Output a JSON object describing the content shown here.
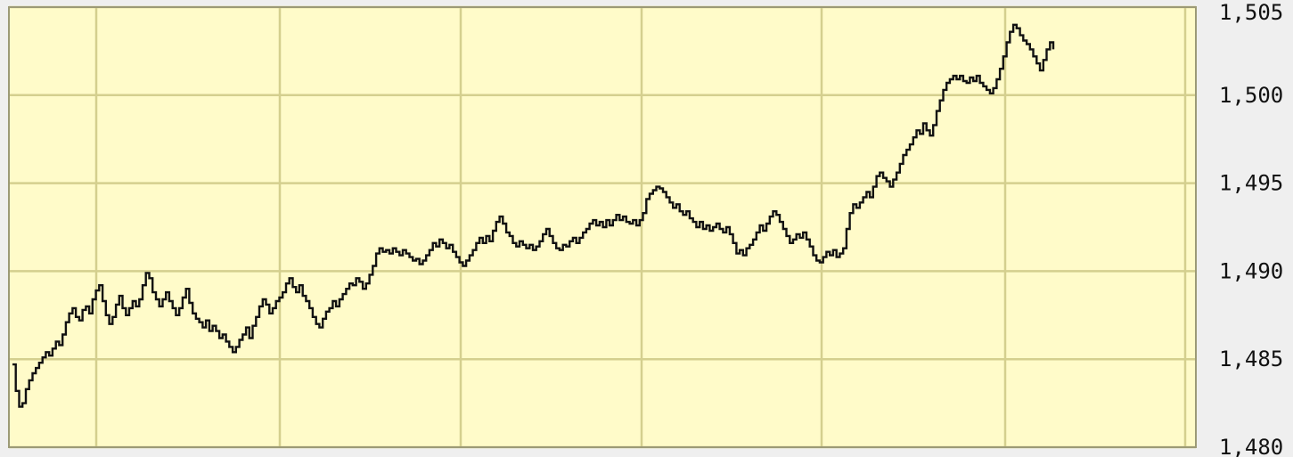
{
  "chart_data": {
    "type": "line",
    "title": "",
    "xlabel": "",
    "ylabel": "",
    "ylim": [
      1480,
      1505
    ],
    "y_ticks": [
      "1,505",
      "1,500",
      "1,495",
      "1,490",
      "1,485",
      "1,480"
    ],
    "y_tick_values": [
      1505,
      1500,
      1495,
      1490,
      1485,
      1480
    ],
    "x_gridline_count": 6,
    "y_axis_position": "right",
    "grid": true,
    "colors": {
      "plot_background": "#fffbc9",
      "gridline": "#d4cf8e",
      "line": "#111111",
      "frame": "#9c9a76"
    },
    "series": [
      {
        "values": [
          1484.7,
          1483.2,
          1482.3,
          1482.5,
          1483.3,
          1483.8,
          1484.2,
          1484.5,
          1484.8,
          1485.1,
          1485.4,
          1485.2,
          1485.6,
          1486.0,
          1485.8,
          1486.4,
          1487.1,
          1487.6,
          1487.9,
          1487.4,
          1487.2,
          1487.8,
          1488.0,
          1487.6,
          1488.4,
          1488.9,
          1489.2,
          1488.3,
          1487.5,
          1487.0,
          1487.4,
          1488.1,
          1488.6,
          1487.9,
          1487.5,
          1487.9,
          1488.3,
          1488.0,
          1488.4,
          1489.2,
          1489.9,
          1489.6,
          1488.8,
          1488.4,
          1488.0,
          1488.4,
          1488.8,
          1488.3,
          1487.9,
          1487.5,
          1487.9,
          1488.5,
          1489.0,
          1488.2,
          1487.6,
          1487.3,
          1487.1,
          1486.8,
          1487.2,
          1486.6,
          1486.9,
          1486.6,
          1486.2,
          1486.4,
          1486.0,
          1485.7,
          1485.4,
          1485.7,
          1486.1,
          1486.4,
          1486.8,
          1486.2,
          1486.9,
          1487.4,
          1488.0,
          1488.4,
          1488.1,
          1487.6,
          1487.9,
          1488.3,
          1488.5,
          1488.8,
          1489.3,
          1489.6,
          1489.1,
          1488.8,
          1489.2,
          1488.6,
          1488.3,
          1487.9,
          1487.4,
          1487.0,
          1486.8,
          1487.3,
          1487.7,
          1487.9,
          1488.3,
          1488.0,
          1488.4,
          1488.7,
          1489.0,
          1489.3,
          1489.2,
          1489.6,
          1489.4,
          1489.0,
          1489.3,
          1489.8,
          1490.3,
          1491.0,
          1491.3,
          1491.1,
          1491.2,
          1491.0,
          1491.3,
          1491.1,
          1490.9,
          1491.2,
          1491.0,
          1490.8,
          1490.6,
          1490.7,
          1490.4,
          1490.6,
          1490.9,
          1491.2,
          1491.6,
          1491.4,
          1491.8,
          1491.6,
          1491.3,
          1491.5,
          1491.1,
          1490.8,
          1490.5,
          1490.3,
          1490.6,
          1490.9,
          1491.2,
          1491.6,
          1491.9,
          1491.6,
          1492.0,
          1491.7,
          1492.3,
          1492.8,
          1493.1,
          1492.7,
          1492.2,
          1492.0,
          1491.6,
          1491.4,
          1491.7,
          1491.5,
          1491.3,
          1491.5,
          1491.2,
          1491.4,
          1491.7,
          1492.1,
          1492.4,
          1492.0,
          1491.6,
          1491.3,
          1491.2,
          1491.5,
          1491.4,
          1491.7,
          1491.9,
          1491.6,
          1491.9,
          1492.2,
          1492.4,
          1492.7,
          1492.9,
          1492.6,
          1492.8,
          1492.5,
          1492.9,
          1492.6,
          1492.9,
          1493.2,
          1492.9,
          1493.1,
          1492.8,
          1492.7,
          1492.9,
          1492.6,
          1492.9,
          1493.3,
          1494.1,
          1494.4,
          1494.6,
          1494.8,
          1494.7,
          1494.5,
          1494.2,
          1493.9,
          1493.6,
          1493.8,
          1493.4,
          1493.2,
          1493.4,
          1493.0,
          1492.8,
          1492.5,
          1492.8,
          1492.4,
          1492.6,
          1492.3,
          1492.5,
          1492.7,
          1492.4,
          1492.2,
          1492.5,
          1492.1,
          1491.6,
          1491.0,
          1491.2,
          1490.9,
          1491.3,
          1491.5,
          1491.8,
          1492.2,
          1492.6,
          1492.3,
          1492.7,
          1493.1,
          1493.4,
          1493.2,
          1492.8,
          1492.4,
          1492.0,
          1491.6,
          1491.8,
          1492.1,
          1491.9,
          1492.2,
          1491.8,
          1491.4,
          1490.9,
          1490.6,
          1490.5,
          1490.8,
          1491.1,
          1490.9,
          1491.2,
          1490.8,
          1491.0,
          1491.3,
          1492.4,
          1493.3,
          1493.8,
          1493.6,
          1493.9,
          1494.2,
          1494.5,
          1494.2,
          1494.8,
          1495.4,
          1495.6,
          1495.3,
          1495.1,
          1494.8,
          1495.2,
          1495.6,
          1496.1,
          1496.6,
          1496.9,
          1497.2,
          1497.6,
          1498.0,
          1497.8,
          1498.4,
          1498.0,
          1497.7,
          1498.3,
          1499.1,
          1499.7,
          1500.3,
          1500.7,
          1500.9,
          1501.1,
          1500.9,
          1501.1,
          1500.8,
          1500.7,
          1501.0,
          1500.8,
          1501.1,
          1500.7,
          1500.5,
          1500.3,
          1500.1,
          1500.4,
          1500.9,
          1501.5,
          1502.2,
          1503.0,
          1503.6,
          1504.0,
          1503.8,
          1503.4,
          1503.1,
          1502.9,
          1502.6,
          1502.2,
          1501.8,
          1501.4,
          1502.0,
          1502.6,
          1503.0,
          1502.6
        ]
      }
    ]
  }
}
